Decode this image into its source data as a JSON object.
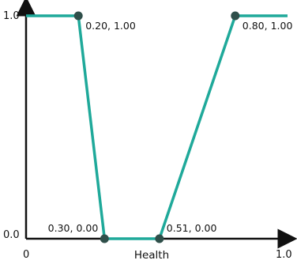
{
  "chart_data": {
    "type": "line",
    "title": "",
    "xlabel": "Health",
    "ylabel": "",
    "xlim": [
      0,
      1.0
    ],
    "ylim": [
      0,
      1.0
    ],
    "grid": false,
    "legend": "none",
    "x_tick_labels": [
      "0",
      "1.0"
    ],
    "y_tick_labels": [
      "0.0",
      "1.0"
    ],
    "series": [
      {
        "x": [
          0.0,
          0.2,
          0.3,
          0.51,
          0.8,
          1.0
        ],
        "y": [
          1.0,
          1.0,
          0.0,
          0.0,
          1.0,
          1.0
        ]
      }
    ],
    "markers": [
      {
        "x": 0.2,
        "y": 1.0,
        "label": "0.20, 1.00"
      },
      {
        "x": 0.3,
        "y": 0.0,
        "label": "0.30, 0.00"
      },
      {
        "x": 0.51,
        "y": 0.0,
        "label": "0.51, 0.00"
      },
      {
        "x": 0.8,
        "y": 1.0,
        "label": "0.80, 1.00"
      }
    ],
    "colors": {
      "line": "#1fa99a",
      "marker": "#2f4f4a",
      "axis": "#111111"
    }
  }
}
